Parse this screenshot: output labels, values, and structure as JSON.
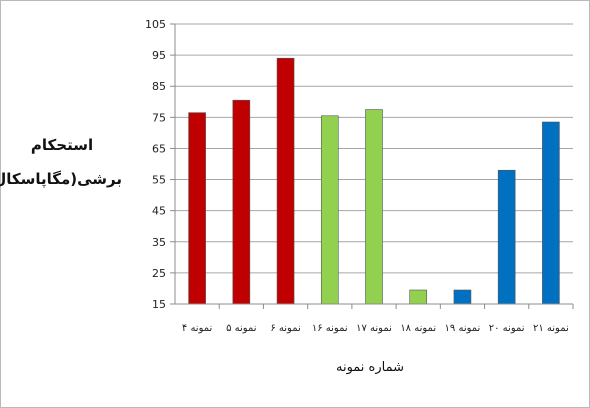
{
  "chart_data": {
    "type": "bar",
    "title": "",
    "ylabel": "استحکام برشی(مگاپاسکال)",
    "ylabel_line1": "استحکام",
    "ylabel_line2": "برشی(مگاپاسکال)",
    "xlabel": "شماره نمونه",
    "ylim": [
      15,
      105
    ],
    "yticks": [
      15,
      25,
      35,
      45,
      55,
      65,
      75,
      85,
      95,
      105
    ],
    "grid": true,
    "legend": "none",
    "categories": [
      "نمونه ۴",
      "نمونه ۵",
      "نمونه ۶",
      "نمونه ۱۶",
      "نمونه ۱۷",
      "نمونه ۱۸",
      "نمونه ۱۹",
      "نمونه ۲۰",
      "نمونه ۲۱"
    ],
    "values": [
      76.5,
      80.5,
      94,
      75.5,
      77.5,
      19.5,
      19.5,
      58,
      73.5
    ],
    "bar_colors": [
      "#c00000",
      "#c00000",
      "#c00000",
      "#92d050",
      "#92d050",
      "#92d050",
      "#0070c0",
      "#0070c0",
      "#0070c0"
    ]
  },
  "colors": {
    "grid": "#a6a6a6",
    "axis": "#8c8c8c",
    "bar_edge": "#555555"
  }
}
